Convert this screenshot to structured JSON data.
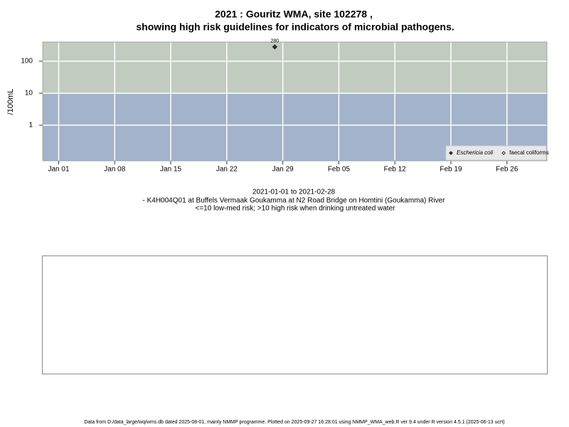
{
  "chart_data": {
    "type": "scatter",
    "title": "2021 : Gouritz WMA, site 102278 ,",
    "subtitle": "showing high risk guidelines for indicators of microbial pathogens.",
    "y_label": "/100mL",
    "x": [
      "2021-01-28"
    ],
    "series": [
      {
        "name": "Eschericia coli",
        "color": "#2b2b2b",
        "marker": "filled-diamond",
        "values": [
          280
        ]
      },
      {
        "name": "faecal coliforms",
        "color": "#2b2b2b",
        "marker": "open-diamond",
        "values": [
          null
        ]
      }
    ],
    "log_y": true,
    "ylim": [
      0.077,
      398
    ],
    "yticks": [
      1,
      10,
      100
    ],
    "xlim": [
      "2020-12-30",
      "2021-03-03"
    ],
    "xticks": [
      {
        "value": "2021-01-01",
        "label": "Jan 01"
      },
      {
        "value": "2021-01-08",
        "label": "Jan 08"
      },
      {
        "value": "2021-01-15",
        "label": "Jan 15"
      },
      {
        "value": "2021-01-22",
        "label": "Jan 22"
      },
      {
        "value": "2021-01-29",
        "label": "Jan 29"
      },
      {
        "value": "2021-02-05",
        "label": "Feb 05"
      },
      {
        "value": "2021-02-12",
        "label": "Feb 12"
      },
      {
        "value": "2021-02-19",
        "label": "Feb 19"
      },
      {
        "value": "2021-02-26",
        "label": "Feb 26"
      }
    ],
    "grid": true,
    "threshold": 10,
    "above_color": "#c2cbc0",
    "below_color": "#a3b3cb",
    "legend": "bottom-right",
    "date_range": "2021-01-01 to 2021-02-28",
    "site": "- K4H004Q01 at Buffels Vermaak Goukamma at N2 Road Bridge on Homtini (Goukamma) River",
    "guideline": "<=10 low-med risk; >10 high risk when drinking untreated water",
    "footer": "Data from D:/data_large/wq/wms.db dated 2025-08-01, mainly NMMP programme. Plotted on 2025-09-27 16:28:01 using NMMP_WMA_web.R ver 9.4 under R version 4.5.1 (2025-06-13 ucrt)"
  }
}
